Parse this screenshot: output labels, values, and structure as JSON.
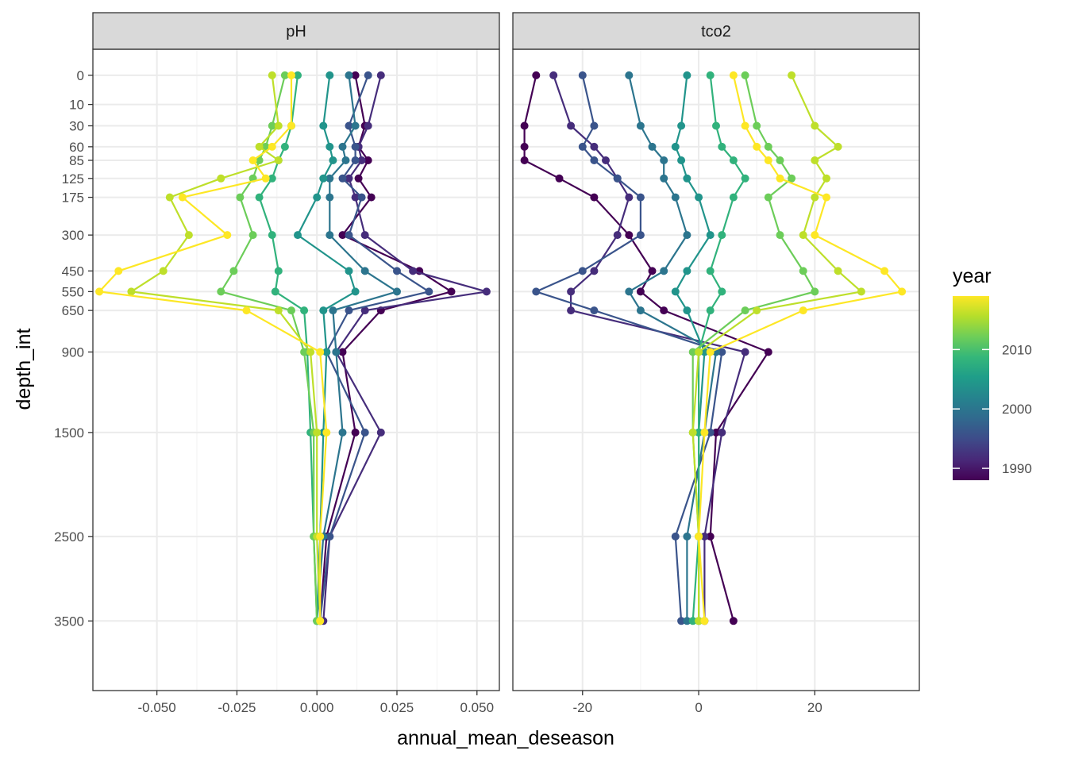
{
  "chart_data": {
    "type": "line",
    "xlabel": "annual_mean_deseason",
    "ylabel": "depth_int",
    "y_reversed": true,
    "y_ticks": [
      0,
      10,
      30,
      60,
      85,
      125,
      175,
      300,
      450,
      550,
      650,
      900,
      1500,
      2500,
      3500
    ],
    "y_tick_labels": [
      "0",
      "10",
      "30",
      "60",
      "85",
      "125",
      "175",
      "300",
      "450",
      "550",
      "650",
      "900",
      "1500",
      "2500",
      "3500"
    ],
    "grid": true,
    "legend": {
      "title": "year",
      "placement": "right",
      "type": "colorbar",
      "range": [
        1988,
        2019
      ],
      "ticks": [
        1990,
        2000,
        2010
      ],
      "tick_labels": [
        "1990",
        "2000",
        "2010"
      ],
      "palette": [
        "#440154",
        "#482878",
        "#3e4a89",
        "#31688e",
        "#26828e",
        "#1f9e89",
        "#35b779",
        "#6ece58",
        "#b5de2b",
        "#fde725"
      ]
    },
    "depths": [
      0,
      10,
      30,
      60,
      85,
      125,
      175,
      300,
      450,
      550,
      650,
      900,
      1500,
      2500,
      3500
    ],
    "years": [
      1988,
      1992,
      1996,
      2000,
      2004,
      2008,
      2012,
      2016,
      2019
    ],
    "panels": [
      {
        "strip": "pH",
        "xlim": [
          -0.07,
          0.057
        ],
        "x_ticks": [
          -0.05,
          -0.025,
          0.0,
          0.025,
          0.05
        ],
        "x_tick_labels": [
          "-0.050",
          "-0.025",
          "0.000",
          "0.025",
          "0.050"
        ],
        "series": [
          {
            "year": 1988,
            "x": [
              0.012,
              null,
              0.015,
              0.013,
              0.016,
              0.013,
              0.017,
              0.008,
              0.032,
              0.042,
              0.02,
              0.008,
              0.012,
              0.003,
              0.001
            ]
          },
          {
            "year": 1992,
            "x": [
              0.02,
              null,
              0.016,
              0.013,
              0.014,
              0.01,
              0.012,
              0.015,
              0.03,
              0.053,
              0.015,
              0.006,
              0.02,
              0.004,
              0.002
            ]
          },
          {
            "year": 1996,
            "x": [
              0.016,
              null,
              0.01,
              0.012,
              0.012,
              0.008,
              0.014,
              0.01,
              0.025,
              0.035,
              0.01,
              0.003,
              0.015,
              0.004,
              0.001
            ]
          },
          {
            "year": 2000,
            "x": [
              0.01,
              null,
              0.012,
              0.008,
              0.009,
              0.004,
              0.004,
              0.004,
              0.015,
              0.025,
              0.005,
              0.006,
              0.008,
              0.002,
              0.0
            ]
          },
          {
            "year": 2004,
            "x": [
              0.004,
              null,
              0.002,
              0.004,
              0.005,
              0.002,
              0.0,
              -0.006,
              0.01,
              0.012,
              0.002,
              0.003,
              0.002,
              0.001,
              0.0
            ]
          },
          {
            "year": 2008,
            "x": [
              -0.006,
              null,
              -0.008,
              -0.01,
              -0.012,
              -0.014,
              -0.018,
              -0.014,
              -0.012,
              -0.013,
              -0.004,
              -0.003,
              -0.002,
              -0.001,
              0.0
            ]
          },
          {
            "year": 2012,
            "x": [
              -0.01,
              null,
              -0.014,
              -0.016,
              -0.018,
              -0.02,
              -0.024,
              -0.02,
              -0.026,
              -0.03,
              -0.008,
              -0.004,
              -0.001,
              -0.001,
              0.0
            ]
          },
          {
            "year": 2016,
            "x": [
              -0.014,
              null,
              -0.012,
              -0.018,
              -0.012,
              -0.03,
              -0.046,
              -0.04,
              -0.048,
              -0.058,
              -0.012,
              -0.002,
              0.0,
              0.0,
              0.001
            ]
          },
          {
            "year": 2019,
            "x": [
              -0.008,
              null,
              -0.008,
              -0.014,
              -0.02,
              -0.016,
              -0.042,
              -0.028,
              -0.062,
              -0.068,
              -0.022,
              0.001,
              0.003,
              0.001,
              0.001
            ]
          }
        ]
      },
      {
        "strip": "tco2",
        "xlim": [
          -32,
          38
        ],
        "x_ticks": [
          -20,
          0,
          20
        ],
        "x_tick_labels": [
          "-20",
          "0",
          "20"
        ],
        "series": [
          {
            "year": 1988,
            "x": [
              -28,
              null,
              -30,
              -30,
              -30,
              -24,
              -18,
              -12,
              -8,
              -10,
              -6,
              12,
              3,
              2,
              6
            ]
          },
          {
            "year": 1992,
            "x": [
              -25,
              null,
              -22,
              -18,
              -16,
              -14,
              -12,
              -14,
              -18,
              -22,
              -22,
              8,
              4,
              1,
              1
            ]
          },
          {
            "year": 1996,
            "x": [
              -20,
              null,
              -18,
              -20,
              -18,
              -14,
              -10,
              -10,
              -20,
              -28,
              -18,
              4,
              2,
              -4,
              -3
            ]
          },
          {
            "year": 2000,
            "x": [
              -12,
              null,
              -10,
              -8,
              -6,
              -6,
              -4,
              -2,
              -6,
              -12,
              -10,
              3,
              1,
              -2,
              -2
            ]
          },
          {
            "year": 2004,
            "x": [
              -2,
              null,
              -3,
              -4,
              -3,
              -2,
              0,
              2,
              -2,
              -4,
              -2,
              1,
              0,
              0,
              0
            ]
          },
          {
            "year": 2008,
            "x": [
              2,
              null,
              3,
              4,
              6,
              8,
              6,
              4,
              2,
              4,
              2,
              0,
              0,
              0,
              -1
            ]
          },
          {
            "year": 2012,
            "x": [
              8,
              null,
              10,
              12,
              14,
              16,
              12,
              14,
              18,
              20,
              8,
              -1,
              -1,
              0,
              0
            ]
          },
          {
            "year": 2016,
            "x": [
              16,
              null,
              20,
              24,
              20,
              22,
              20,
              18,
              24,
              28,
              10,
              0,
              -1,
              0,
              0
            ]
          },
          {
            "year": 2019,
            "x": [
              6,
              null,
              8,
              10,
              12,
              14,
              22,
              20,
              32,
              35,
              18,
              2,
              1,
              0,
              1
            ]
          }
        ]
      }
    ]
  }
}
